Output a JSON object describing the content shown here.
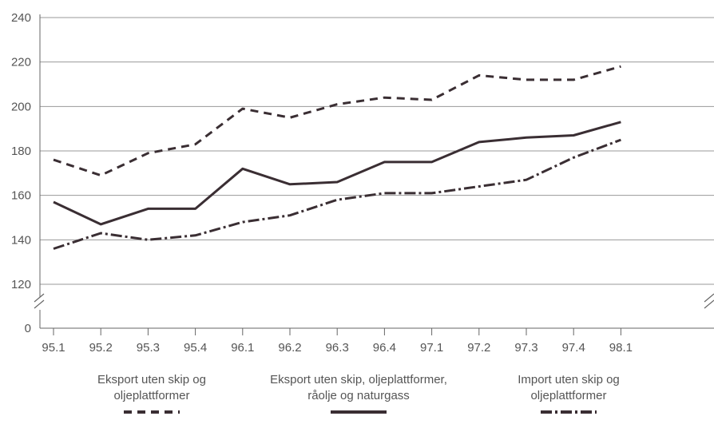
{
  "chart_data": {
    "type": "line",
    "categories": [
      "95.1",
      "95.2",
      "95.3",
      "95.4",
      "96.1",
      "96.2",
      "96.3",
      "96.4",
      "97.1",
      "97.2",
      "97.3",
      "97.4",
      "98.1"
    ],
    "y_ticks": [
      "0",
      "120",
      "140",
      "160",
      "180",
      "200",
      "220",
      "240"
    ],
    "axis_break": true,
    "grid": true,
    "ylim": [
      120,
      240
    ],
    "legend_position": "bottom",
    "series": [
      {
        "name_lines": [
          "Eksport uten skip og",
          "oljeplattformer"
        ],
        "style": "dashed",
        "values": [
          176,
          169,
          179,
          183,
          199,
          195,
          201,
          204,
          203,
          214,
          212,
          212,
          218
        ]
      },
      {
        "name_lines": [
          "Eksport uten skip, oljeplattformer,",
          "råolje og naturgass"
        ],
        "style": "solid",
        "values": [
          157,
          147,
          154,
          154,
          172,
          165,
          166,
          175,
          175,
          184,
          186,
          187,
          193
        ]
      },
      {
        "name_lines": [
          "Import uten skip og",
          "oljeplattformer"
        ],
        "style": "dash-dot",
        "values": [
          136,
          143,
          140,
          142,
          148,
          151,
          158,
          161,
          161,
          164,
          167,
          177,
          185
        ]
      }
    ],
    "colors": {
      "line": "#3a2e33",
      "grid": "#999999",
      "text": "#555555"
    }
  }
}
